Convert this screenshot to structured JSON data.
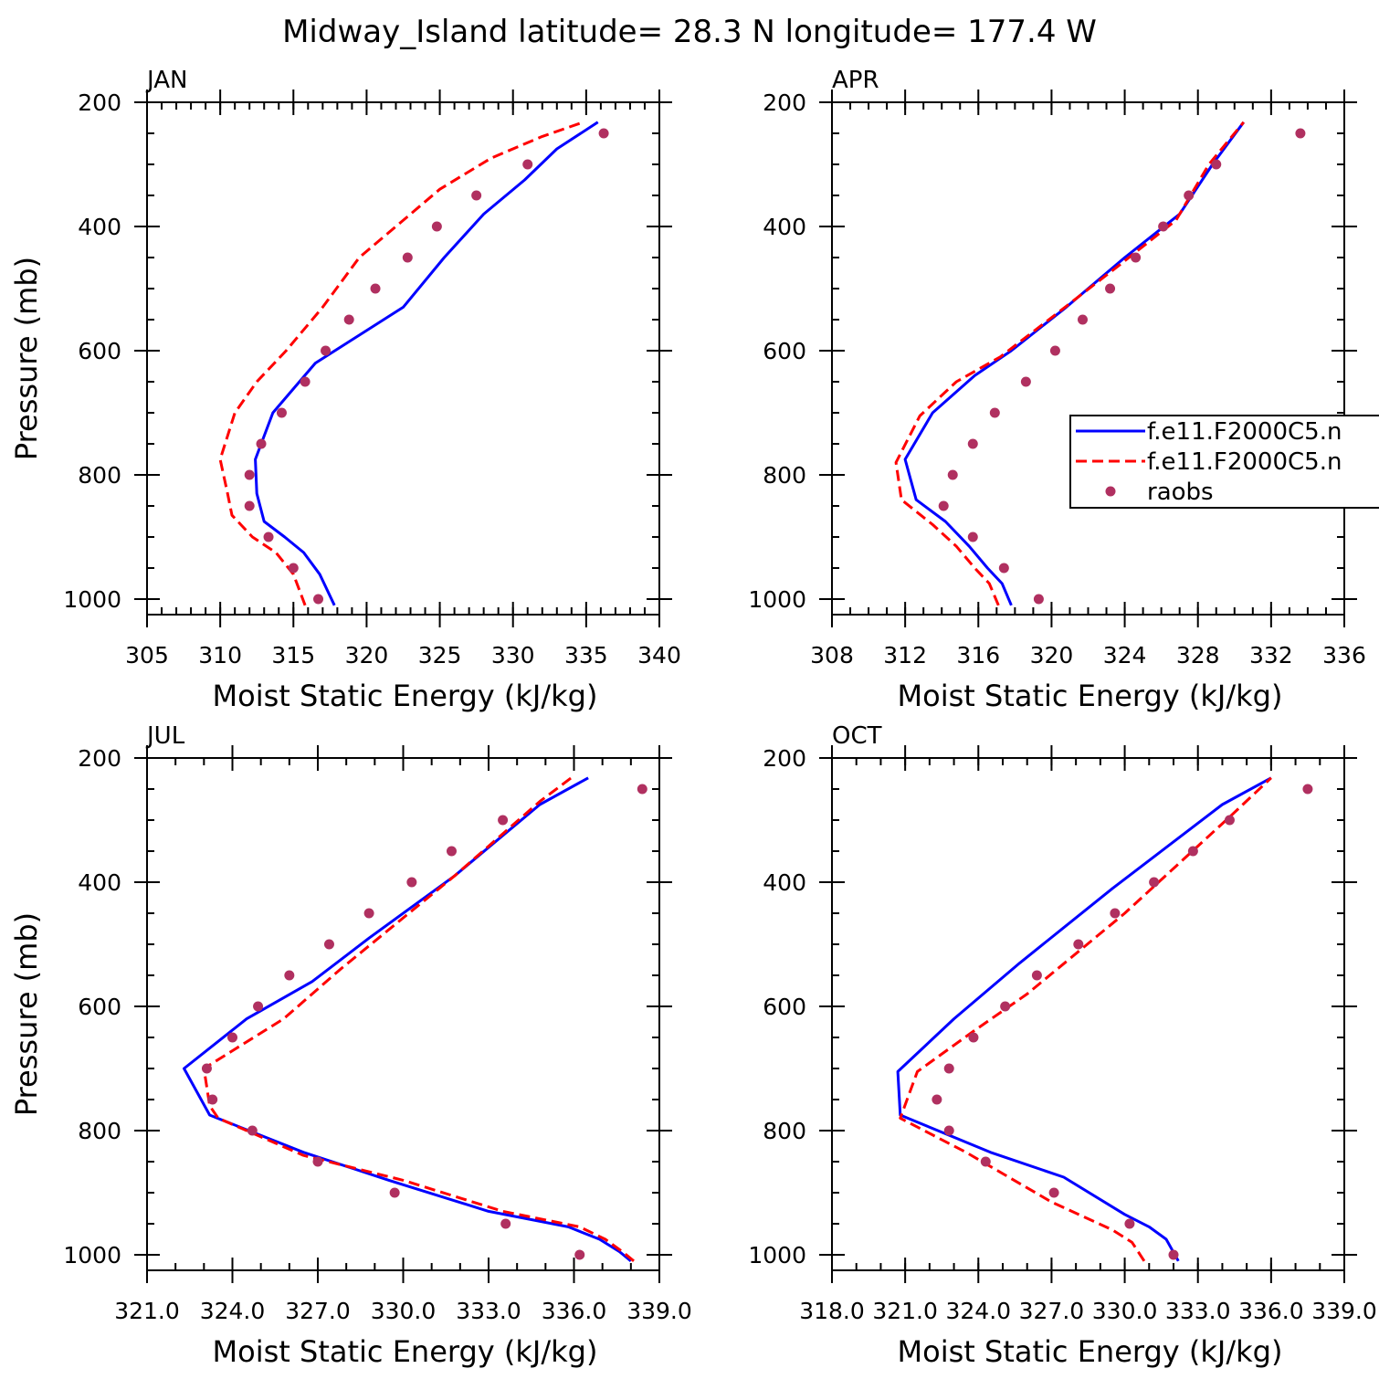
{
  "figure": {
    "title": "Midway_Island  latitude= 28.3 N longitude= 177.4 W"
  },
  "colors": {
    "model_solid": "#0000ff",
    "model_dashed": "#ff0000",
    "raobs": "#b03060",
    "axes": "#000000"
  },
  "legend": {
    "location": "right-middle of APR panel",
    "entries": [
      {
        "label": "f.e11.F2000C5.n",
        "style": "solid",
        "color_key": "model_solid"
      },
      {
        "label": "f.e11.F2000C5.n",
        "style": "dashed",
        "color_key": "model_dashed"
      },
      {
        "label": "raobs",
        "style": "marker",
        "color_key": "raobs"
      }
    ]
  },
  "chart_data": [
    {
      "type": "line",
      "panel": "JAN",
      "xlabel": "Moist Static Energy (kJ/kg)",
      "ylabel": "Pressure (mb)",
      "xlim": [
        305,
        340
      ],
      "ylim": [
        1025,
        200
      ],
      "xticks": [
        305,
        310,
        315,
        320,
        325,
        330,
        335,
        340
      ],
      "xtick_labels": [
        "305",
        "310",
        "315",
        "320",
        "325",
        "330",
        "335",
        "340"
      ],
      "xminor": 1,
      "yticks": [
        200,
        400,
        600,
        800,
        1000
      ],
      "ytick_labels": [
        "200",
        "400",
        "600",
        "800",
        "1000"
      ],
      "yminor": 50,
      "series": [
        {
          "name": "f.e11.F2000C5.n",
          "style": "solid",
          "color_key": "model_solid",
          "x": [
            317.8,
            316.8,
            315.7,
            314.4,
            313.0,
            312.5,
            312.4,
            313.6,
            316.5,
            319.5,
            322.5,
            325.3,
            328.0,
            330.8,
            333.0,
            335.8
          ],
          "y": [
            1010,
            960,
            925,
            900,
            875,
            830,
            775,
            700,
            620,
            575,
            530,
            450,
            380,
            325,
            275,
            232
          ]
        },
        {
          "name": "f.e11.F2000C5.n",
          "style": "dashed",
          "color_key": "model_dashed",
          "x": [
            315.8,
            315.0,
            313.8,
            312.2,
            310.8,
            310.5,
            310.0,
            311.0,
            312.5,
            314.5,
            317.0,
            319.5,
            322.0,
            325.0,
            328.5,
            332.0,
            334.8
          ],
          "y": [
            1010,
            960,
            925,
            900,
            865,
            830,
            775,
            700,
            650,
            600,
            530,
            450,
            400,
            340,
            290,
            255,
            232
          ]
        },
        {
          "name": "raobs",
          "style": "marker",
          "color_key": "raobs",
          "x": [
            316.7,
            315.0,
            313.3,
            312.0,
            312.0,
            312.8,
            314.2,
            315.8,
            317.2,
            318.8,
            320.6,
            322.8,
            324.8,
            327.5,
            331.0,
            336.2
          ],
          "y": [
            1000,
            950,
            900,
            850,
            800,
            750,
            700,
            650,
            600,
            550,
            500,
            450,
            400,
            350,
            300,
            250
          ]
        }
      ]
    },
    {
      "type": "line",
      "panel": "APR",
      "xlabel": "Moist Static Energy (kJ/kg)",
      "ylabel": "",
      "xlim": [
        308,
        336
      ],
      "ylim": [
        1025,
        200
      ],
      "xticks": [
        308,
        312,
        316,
        320,
        324,
        328,
        332,
        336
      ],
      "xtick_labels": [
        "308",
        "312",
        "316",
        "320",
        "324",
        "328",
        "332",
        "336"
      ],
      "xminor": 1,
      "yticks": [
        200,
        400,
        600,
        800,
        1000
      ],
      "ytick_labels": [
        "200",
        "400",
        "600",
        "800",
        "1000"
      ],
      "yminor": 50,
      "series": [
        {
          "name": "f.e11.F2000C5.n",
          "style": "solid",
          "color_key": "model_solid",
          "x": [
            317.8,
            317.3,
            316.5,
            315.5,
            314.2,
            312.6,
            312.0,
            313.5,
            315.8,
            317.8,
            320.8,
            324.0,
            327.0,
            328.8,
            330.5
          ],
          "y": [
            1010,
            975,
            950,
            915,
            875,
            840,
            775,
            700,
            640,
            600,
            530,
            450,
            380,
            300,
            232
          ]
        },
        {
          "name": "f.e11.F2000C5.n",
          "style": "dashed",
          "color_key": "model_dashed",
          "x": [
            317.1,
            316.6,
            315.8,
            314.8,
            313.5,
            311.8,
            311.5,
            312.8,
            314.8,
            317.2,
            320.3,
            323.8,
            326.8,
            328.6,
            330.5
          ],
          "y": [
            1010,
            975,
            950,
            915,
            880,
            840,
            780,
            705,
            650,
            610,
            540,
            460,
            390,
            300,
            232
          ]
        },
        {
          "name": "raobs",
          "style": "marker",
          "color_key": "raobs",
          "x": [
            319.3,
            317.4,
            315.7,
            314.1,
            314.6,
            315.7,
            316.9,
            318.6,
            320.2,
            321.7,
            323.2,
            324.6,
            326.1,
            327.5,
            329.0,
            333.6
          ],
          "y": [
            1000,
            950,
            900,
            850,
            800,
            750,
            700,
            650,
            600,
            550,
            500,
            450,
            400,
            350,
            300,
            250
          ]
        }
      ]
    },
    {
      "type": "line",
      "panel": "JUL",
      "xlabel": "Moist Static Energy (kJ/kg)",
      "ylabel": "Pressure (mb)",
      "xlim": [
        321,
        339
      ],
      "ylim": [
        1025,
        200
      ],
      "xticks": [
        321,
        324,
        327,
        330,
        333,
        336,
        339
      ],
      "xtick_labels": [
        "321.0",
        "324.0",
        "327.0",
        "330.0",
        "333.0",
        "336.0",
        "339.0"
      ],
      "xminor": 1,
      "yticks": [
        200,
        400,
        600,
        800,
        1000
      ],
      "ytick_labels": [
        "200",
        "400",
        "600",
        "800",
        "1000"
      ],
      "yminor": 50,
      "series": [
        {
          "name": "f.e11.F2000C5.n",
          "style": "solid",
          "color_key": "model_solid",
          "x": [
            338.0,
            337.6,
            336.9,
            335.8,
            333.0,
            329.5,
            326.5,
            323.2,
            322.3,
            324.5,
            326.8,
            328.8,
            331.8,
            334.8,
            336.5
          ],
          "y": [
            1010,
            995,
            975,
            955,
            930,
            880,
            835,
            775,
            700,
            620,
            560,
            490,
            390,
            275,
            232
          ]
        },
        {
          "name": "f.e11.F2000C5.n",
          "style": "dashed",
          "color_key": "model_dashed",
          "x": [
            338.1,
            337.7,
            337.1,
            336.2,
            333.5,
            330.0,
            326.5,
            323.5,
            323.2,
            323.0,
            325.8,
            327.8,
            331.8,
            334.8,
            335.9
          ],
          "y": [
            1010,
            995,
            975,
            955,
            930,
            880,
            840,
            780,
            760,
            700,
            620,
            540,
            390,
            270,
            232
          ]
        },
        {
          "name": "raobs",
          "style": "marker",
          "color_key": "raobs",
          "x": [
            336.2,
            333.6,
            329.7,
            327.0,
            324.7,
            323.3,
            323.1,
            324.0,
            324.9,
            326.0,
            327.4,
            328.8,
            330.3,
            331.7,
            333.5,
            338.4
          ],
          "y": [
            1000,
            950,
            900,
            850,
            800,
            750,
            700,
            650,
            600,
            550,
            500,
            450,
            400,
            350,
            300,
            250
          ]
        }
      ]
    },
    {
      "type": "line",
      "panel": "OCT",
      "xlabel": "Moist Static Energy (kJ/kg)",
      "ylabel": "",
      "xlim": [
        318,
        339
      ],
      "ylim": [
        1025,
        200
      ],
      "xticks": [
        318,
        321,
        324,
        327,
        330,
        333,
        336,
        339
      ],
      "xtick_labels": [
        "318.0",
        "321.0",
        "324.0",
        "327.0",
        "330.0",
        "333.0",
        "336.0",
        "339.0"
      ],
      "xminor": 1,
      "yticks": [
        200,
        400,
        600,
        800,
        1000
      ],
      "ytick_labels": [
        "200",
        "400",
        "600",
        "800",
        "1000"
      ],
      "yminor": 50,
      "series": [
        {
          "name": "f.e11.F2000C5.n",
          "style": "solid",
          "color_key": "model_solid",
          "x": [
            332.2,
            331.7,
            331.0,
            330.0,
            327.5,
            324.5,
            320.8,
            320.7,
            323.0,
            325.7,
            329.5,
            334.0,
            336.0
          ],
          "y": [
            1010,
            975,
            955,
            935,
            875,
            835,
            775,
            705,
            620,
            530,
            410,
            275,
            232
          ]
        },
        {
          "name": "f.e11.F2000C5.n",
          "style": "dashed",
          "color_key": "model_dashed",
          "x": [
            330.8,
            330.3,
            329.5,
            327.0,
            323.5,
            320.8,
            321.5,
            323.8,
            326.0,
            330.0,
            334.3,
            336.0
          ],
          "y": [
            1010,
            980,
            960,
            915,
            835,
            780,
            705,
            640,
            580,
            450,
            295,
            232
          ]
        },
        {
          "name": "raobs",
          "style": "marker",
          "color_key": "raobs",
          "x": [
            332.0,
            330.2,
            327.1,
            324.3,
            322.8,
            322.3,
            322.8,
            323.8,
            325.1,
            326.4,
            328.1,
            329.6,
            331.2,
            332.8,
            334.3,
            337.5
          ],
          "y": [
            1000,
            950,
            900,
            850,
            800,
            750,
            700,
            650,
            600,
            550,
            500,
            450,
            400,
            350,
            300,
            250
          ]
        }
      ]
    }
  ]
}
